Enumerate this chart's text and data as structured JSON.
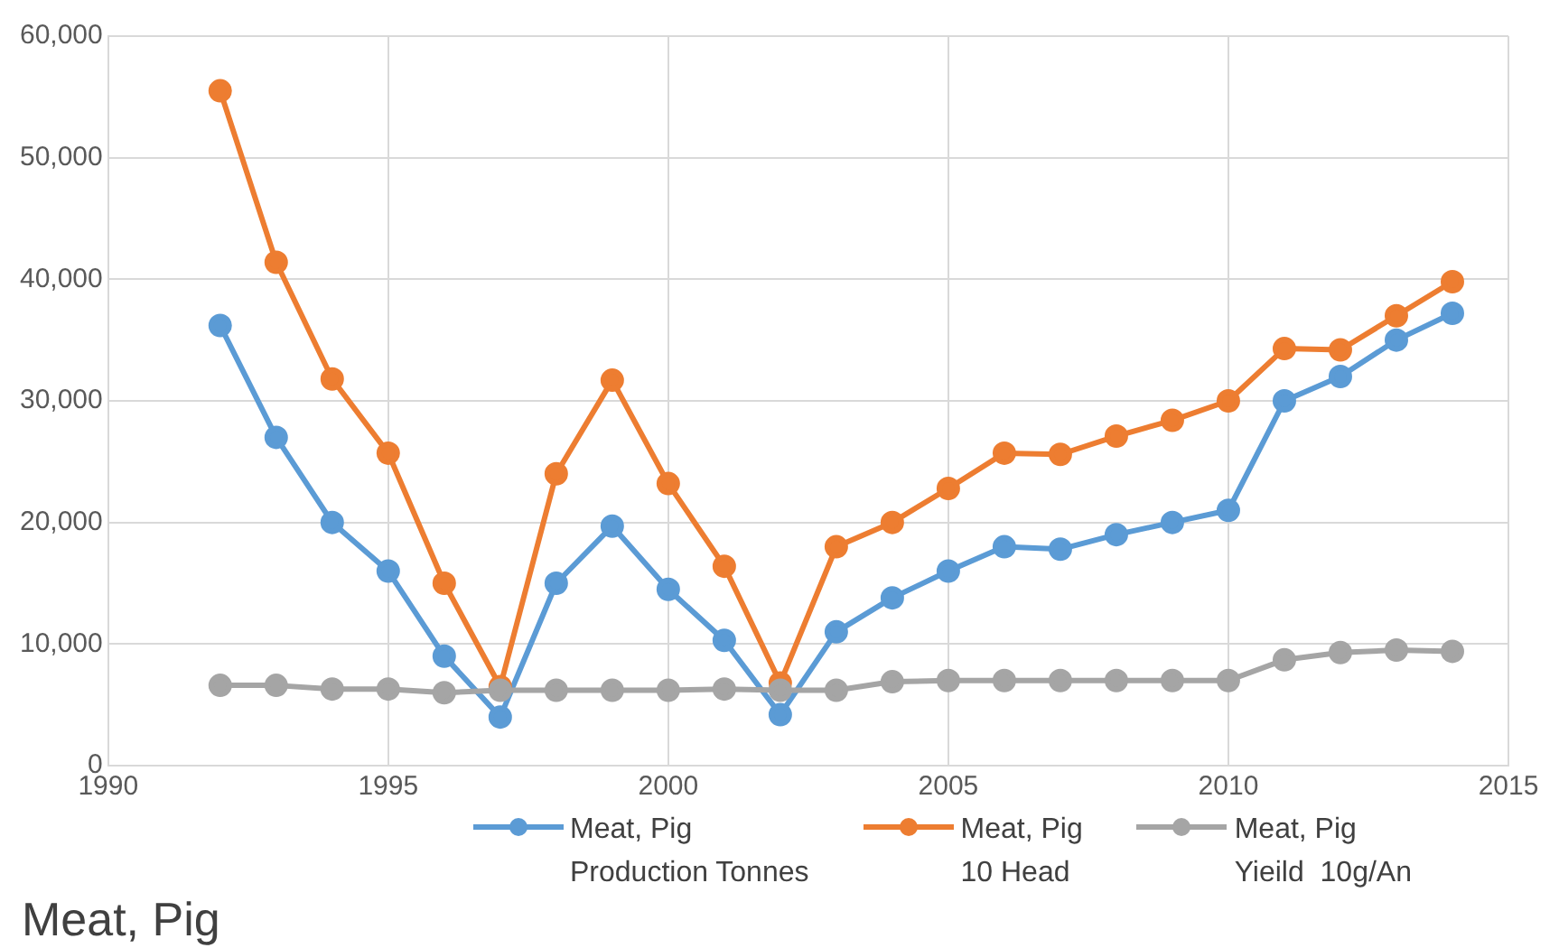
{
  "chart_data": {
    "type": "line",
    "title": "Meat, Pig",
    "x": [
      1992,
      1993,
      1994,
      1995,
      1996,
      1997,
      1998,
      1999,
      2000,
      2001,
      2002,
      2003,
      2004,
      2005,
      2006,
      2007,
      2008,
      2009,
      2010,
      2011,
      2012,
      2013,
      2014
    ],
    "series": [
      {
        "name": "Meat, Pig\nProduction Tonnes",
        "color": "#5b9bd5",
        "values": [
          36200,
          27000,
          20000,
          16000,
          9000,
          4000,
          15000,
          19700,
          14500,
          10300,
          4200,
          11000,
          13800,
          16000,
          18000,
          17800,
          19000,
          20000,
          21000,
          30000,
          32000,
          35000,
          37200
        ]
      },
      {
        "name": "Meat, Pig\n10 Head",
        "color": "#ed7d31",
        "values": [
          55500,
          41400,
          31800,
          25700,
          15000,
          6500,
          24000,
          31700,
          23200,
          16400,
          6800,
          18000,
          20000,
          22800,
          25700,
          25600,
          27100,
          28400,
          30000,
          34300,
          34200,
          37000,
          39800
        ]
      },
      {
        "name": "Meat, Pig\nYieild  10g/An",
        "color": "#a5a5a5",
        "values": [
          6600,
          6600,
          6300,
          6300,
          6000,
          6200,
          6200,
          6200,
          6200,
          6300,
          6200,
          6200,
          6900,
          7000,
          7000,
          7000,
          7000,
          7000,
          7000,
          8700,
          9300,
          9500,
          9400
        ]
      }
    ],
    "xlim": [
      1990,
      2015
    ],
    "xticks": [
      1990,
      1995,
      2000,
      2005,
      2010,
      2015
    ],
    "ylim": [
      0,
      60000
    ],
    "yticks": [
      0,
      {
        "value": 10000,
        "label": "10,000"
      },
      {
        "value": 20000,
        "label": "20,000"
      },
      {
        "value": 30000,
        "label": "30,000"
      },
      {
        "value": 40000,
        "label": "40,000"
      },
      {
        "value": 50000,
        "label": "50,000"
      },
      {
        "value": 60000,
        "label": "60,000"
      }
    ],
    "grid": true,
    "legend": "bottom",
    "marker": "circle",
    "line_style": "solid"
  }
}
